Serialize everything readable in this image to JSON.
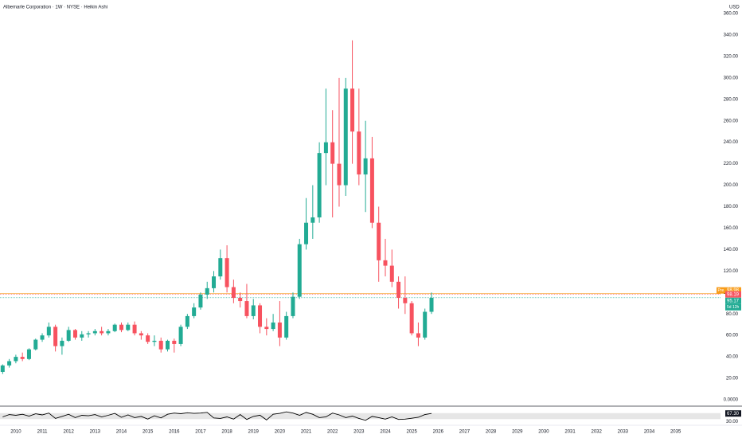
{
  "chart_data": {
    "type": "candlestick",
    "title": "Albemarle Corporation · 1W · NYSE · Heikin Ashi",
    "currency": "USD",
    "up_color": "#22ab94",
    "down_color": "#f7525f",
    "x": [
      2009.5,
      2009.75,
      2010,
      2010.25,
      2010.5,
      2010.75,
      2011,
      2011.25,
      2011.5,
      2011.75,
      2012,
      2012.25,
      2012.5,
      2012.75,
      2013,
      2013.25,
      2013.5,
      2013.75,
      2014,
      2014.25,
      2014.5,
      2014.75,
      2015,
      2015.25,
      2015.5,
      2015.75,
      2016,
      2016.25,
      2016.5,
      2016.75,
      2017,
      2017.25,
      2017.5,
      2017.75,
      2018,
      2018.25,
      2018.5,
      2018.75,
      2019,
      2019.25,
      2019.5,
      2019.75,
      2020,
      2020.25,
      2020.5,
      2020.75,
      2021,
      2021.25,
      2021.5,
      2021.75,
      2022,
      2022.25,
      2022.5,
      2022.75,
      2023,
      2023.25,
      2023.5,
      2023.75,
      2024,
      2024.25,
      2024.5,
      2024.75,
      2025,
      2025.25,
      2025.5,
      2025.75
    ],
    "open": [
      26,
      32,
      36,
      40,
      38,
      47,
      56,
      60,
      68,
      50,
      55,
      65,
      58,
      61,
      62,
      64,
      62,
      64,
      70,
      65,
      70,
      62,
      60,
      54,
      55,
      47,
      55,
      52,
      68,
      78,
      86,
      98,
      104,
      115,
      132,
      105,
      95,
      92,
      78,
      88,
      68,
      66,
      72,
      58,
      78,
      96,
      145,
      165,
      170,
      230,
      240,
      220,
      200,
      290,
      250,
      210,
      225,
      165,
      130,
      125,
      110,
      95,
      90,
      62,
      58,
      82
    ],
    "high": [
      33,
      38,
      42,
      44,
      48,
      57,
      62,
      72,
      70,
      58,
      68,
      66,
      64,
      64,
      66,
      68,
      66,
      71,
      72,
      72,
      73,
      64,
      62,
      60,
      58,
      56,
      57,
      70,
      80,
      90,
      100,
      110,
      120,
      140,
      144,
      112,
      100,
      108,
      94,
      90,
      76,
      80,
      92,
      82,
      100,
      150,
      188,
      200,
      240,
      290,
      270,
      300,
      300,
      335,
      290,
      260,
      245,
      180,
      150,
      140,
      115,
      115,
      92,
      72,
      85,
      100
    ],
    "low": [
      24,
      30,
      34,
      36,
      37,
      46,
      54,
      58,
      45,
      42,
      54,
      56,
      55,
      58,
      60,
      60,
      60,
      63,
      63,
      64,
      60,
      56,
      52,
      50,
      44,
      45,
      44,
      50,
      66,
      76,
      84,
      94,
      100,
      112,
      100,
      90,
      86,
      76,
      75,
      62,
      60,
      64,
      50,
      56,
      76,
      94,
      140,
      150,
      165,
      200,
      170,
      180,
      190,
      220,
      200,
      175,
      160,
      110,
      115,
      105,
      85,
      80,
      60,
      50,
      56,
      80
    ],
    "close": [
      32,
      36,
      40,
      38,
      47,
      56,
      60,
      68,
      50,
      55,
      65,
      58,
      61,
      62,
      64,
      62,
      64,
      70,
      65,
      70,
      62,
      60,
      54,
      55,
      47,
      55,
      52,
      68,
      78,
      86,
      98,
      104,
      115,
      132,
      105,
      95,
      92,
      78,
      88,
      68,
      66,
      72,
      58,
      78,
      96,
      145,
      165,
      170,
      230,
      240,
      220,
      200,
      290,
      250,
      210,
      225,
      165,
      130,
      125,
      110,
      95,
      90,
      62,
      58,
      82,
      95
    ],
    "ylim": [
      0,
      360
    ],
    "yticks": [
      {
        "value": 0,
        "label": "0.0000"
      },
      {
        "value": 20,
        "label": "20.00"
      },
      {
        "value": 40,
        "label": "40.00"
      },
      {
        "value": 60,
        "label": "60.00"
      },
      {
        "value": 80,
        "label": "80.00"
      },
      {
        "value": 100,
        "label": "100.00"
      },
      {
        "value": 120,
        "label": "120.00"
      },
      {
        "value": 140,
        "label": "140.00"
      },
      {
        "value": 160,
        "label": "160.00"
      },
      {
        "value": 180,
        "label": "180.00"
      },
      {
        "value": 200,
        "label": "200.00"
      },
      {
        "value": 220,
        "label": "220.00"
      },
      {
        "value": 240,
        "label": "240.00"
      },
      {
        "value": 260,
        "label": "260.00"
      },
      {
        "value": 280,
        "label": "280.00"
      },
      {
        "value": 300,
        "label": "300.00"
      },
      {
        "value": 320,
        "label": "320.00"
      },
      {
        "value": 340,
        "label": "340.00"
      },
      {
        "value": 360,
        "label": "360.00"
      }
    ],
    "xlim": [
      2009.4,
      2036.7
    ],
    "xticks": [
      2010,
      2011,
      2012,
      2013,
      2014,
      2015,
      2016,
      2017,
      2018,
      2019,
      2020,
      2021,
      2022,
      2023,
      2024,
      2025,
      2026,
      2027,
      2028,
      2029,
      2030,
      2031,
      2032,
      2033,
      2034,
      2035
    ],
    "price_lines": [
      {
        "value": 98.98,
        "label": "98.98",
        "color": "#f89c1a",
        "tag": "Pre"
      },
      {
        "value": 98.19,
        "label": "98.19",
        "color": "#f7525f"
      },
      {
        "value": 95.17,
        "label": "95.17",
        "color": "#22ab94",
        "tag": "5d 12h"
      }
    ],
    "oscillator": {
      "values": [
        45,
        60,
        55,
        62,
        50,
        65,
        58,
        70,
        35,
        48,
        62,
        40,
        55,
        52,
        60,
        45,
        55,
        68,
        42,
        58,
        40,
        48,
        30,
        52,
        38,
        62,
        70,
        66,
        72,
        68,
        70,
        75,
        38,
        35,
        45,
        30,
        60,
        28,
        48,
        56,
        25,
        62,
        68,
        78,
        70,
        55,
        74,
        62,
        40,
        45,
        70,
        58,
        40,
        50,
        35,
        22,
        48,
        40,
        30,
        45,
        28,
        30,
        36,
        42,
        60,
        67.3
      ],
      "ylim": [
        0,
        100
      ],
      "band": [
        30,
        70
      ],
      "last_label": "67.30",
      "yticks": [
        {
          "value": 30,
          "label": "30.00"
        }
      ]
    }
  }
}
